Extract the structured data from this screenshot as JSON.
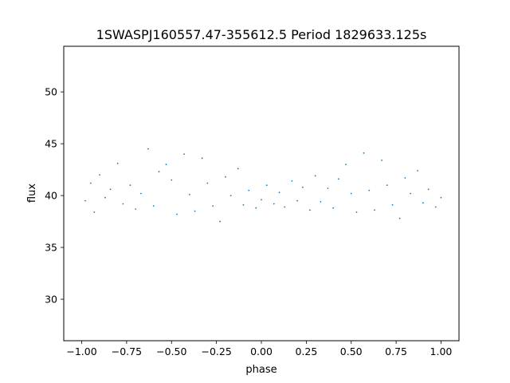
{
  "chart_data": {
    "type": "scatter",
    "title": "1SWASPJ160557.47-355612.5 Period 1829633.125s",
    "xlabel": "phase",
    "ylabel": "flux",
    "xlim": [
      -1.1,
      1.1
    ],
    "ylim": [
      26,
      54.4
    ],
    "xticks": [
      -1.0,
      -0.75,
      -0.5,
      -0.25,
      0.0,
      0.25,
      0.5,
      0.75,
      1.0
    ],
    "xtick_labels": [
      "−1.00",
      "−0.75",
      "−0.50",
      "−0.25",
      "0.00",
      "0.25",
      "0.50",
      "0.75",
      "1.00"
    ],
    "yticks": [
      30,
      35,
      40,
      45,
      50
    ],
    "ytick_labels": [
      "30",
      "35",
      "40",
      "45",
      "50"
    ],
    "grid": false,
    "marker_color": "#1f77b4",
    "series": [
      {
        "values": [
          [
            -0.98,
            39.5
          ],
          [
            -0.95,
            41.2
          ],
          [
            -0.93,
            38.4
          ],
          [
            -0.9,
            42.0
          ],
          [
            -0.87,
            39.8
          ],
          [
            -0.84,
            40.6
          ],
          [
            -0.8,
            43.1
          ],
          [
            -0.77,
            39.2
          ],
          [
            -0.73,
            41.0
          ],
          [
            -0.7,
            38.7
          ],
          [
            -0.67,
            40.2
          ],
          [
            -0.63,
            44.5
          ],
          [
            -0.6,
            39.0
          ],
          [
            -0.57,
            42.3
          ],
          [
            -0.53,
            43.0
          ],
          [
            -0.5,
            41.5
          ],
          [
            -0.47,
            38.2
          ],
          [
            -0.43,
            44.0
          ],
          [
            -0.4,
            40.1
          ],
          [
            -0.37,
            38.5
          ],
          [
            -0.33,
            43.6
          ],
          [
            -0.3,
            41.2
          ],
          [
            -0.27,
            39.0
          ],
          [
            -0.23,
            37.5
          ],
          [
            -0.2,
            41.8
          ],
          [
            -0.17,
            40.0
          ],
          [
            -0.13,
            42.6
          ],
          [
            -0.1,
            39.1
          ],
          [
            -0.07,
            40.5
          ],
          [
            -0.03,
            38.8
          ],
          [
            0.0,
            39.6
          ],
          [
            0.03,
            41.0
          ],
          [
            0.07,
            39.2
          ],
          [
            0.1,
            40.3
          ],
          [
            0.13,
            38.9
          ],
          [
            0.17,
            41.4
          ],
          [
            0.2,
            39.5
          ],
          [
            0.23,
            40.8
          ],
          [
            0.27,
            38.6
          ],
          [
            0.3,
            41.9
          ],
          [
            0.33,
            39.4
          ],
          [
            0.37,
            40.7
          ],
          [
            0.4,
            38.8
          ],
          [
            0.43,
            41.6
          ],
          [
            0.47,
            43.0
          ],
          [
            0.5,
            40.2
          ],
          [
            0.53,
            38.4
          ],
          [
            0.57,
            44.1
          ],
          [
            0.6,
            40.5
          ],
          [
            0.63,
            38.6
          ],
          [
            0.67,
            43.4
          ],
          [
            0.7,
            41.0
          ],
          [
            0.73,
            39.1
          ],
          [
            0.77,
            37.8
          ],
          [
            0.8,
            41.7
          ],
          [
            0.83,
            40.2
          ],
          [
            0.87,
            42.4
          ],
          [
            0.9,
            39.3
          ],
          [
            0.93,
            40.6
          ],
          [
            0.97,
            38.9
          ],
          [
            1.0,
            39.8
          ]
        ]
      }
    ]
  }
}
